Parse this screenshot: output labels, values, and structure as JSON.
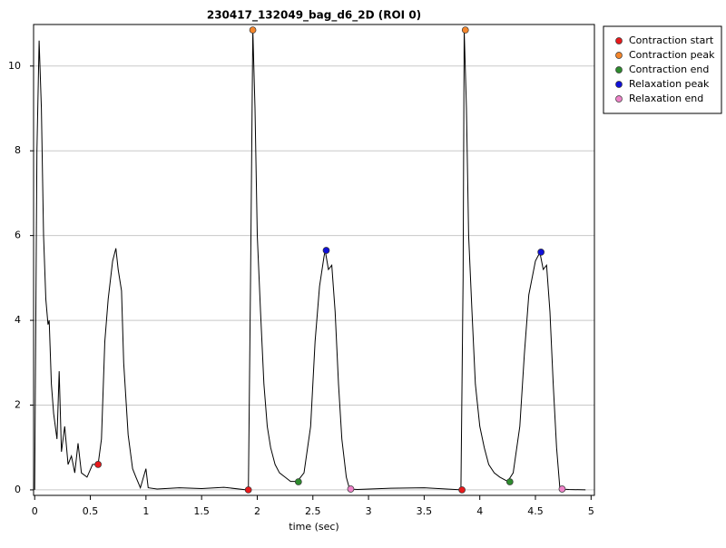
{
  "chart_data": {
    "type": "line",
    "title": "230417_132049_bag_d6_2D (ROI 0)",
    "x_label": "time (sec)",
    "xlim": [
      -0.01,
      5.03
    ],
    "ylim": [
      -0.13,
      10.98
    ],
    "xticks": [
      0,
      0.5,
      1,
      1.5,
      2,
      2.5,
      3,
      3.5,
      4,
      4.5,
      5
    ],
    "yticks": [
      0,
      2,
      4,
      6,
      8,
      10
    ],
    "grid": true,
    "legend": "outside-right",
    "trace": {
      "color": "#000000",
      "x": [
        0.0,
        0.02,
        0.04,
        0.06,
        0.08,
        0.1,
        0.12,
        0.13,
        0.15,
        0.17,
        0.2,
        0.22,
        0.24,
        0.27,
        0.3,
        0.33,
        0.36,
        0.39,
        0.42,
        0.47,
        0.52,
        0.57,
        0.6,
        0.63,
        0.66,
        0.7,
        0.73,
        0.75,
        0.78,
        0.8,
        0.84,
        0.88,
        0.91,
        0.95,
        1.0,
        1.02,
        1.1,
        1.3,
        1.5,
        1.7,
        1.9,
        1.92,
        1.94,
        1.96,
        1.98,
        2.0,
        2.03,
        2.06,
        2.09,
        2.12,
        2.16,
        2.2,
        2.25,
        2.3,
        2.36,
        2.42,
        2.48,
        2.52,
        2.56,
        2.6,
        2.61,
        2.64,
        2.67,
        2.7,
        2.73,
        2.76,
        2.8,
        2.83,
        2.9,
        3.2,
        3.5,
        3.83,
        3.85,
        3.86,
        3.88,
        3.9,
        3.93,
        3.96,
        4.0,
        4.04,
        4.08,
        4.13,
        4.18,
        4.25,
        4.3,
        4.36,
        4.4,
        4.44,
        4.5,
        4.54,
        4.57,
        4.6,
        4.63,
        4.66,
        4.69,
        4.72,
        4.8,
        4.95
      ],
      "values": [
        0,
        8,
        10.6,
        9,
        6,
        4.5,
        3.9,
        4.0,
        2.5,
        1.8,
        1.2,
        2.8,
        0.9,
        1.5,
        0.6,
        0.8,
        0.4,
        1.1,
        0.4,
        0.3,
        0.6,
        0.6,
        1.2,
        3.5,
        4.5,
        5.4,
        5.7,
        5.2,
        4.7,
        3.0,
        1.3,
        0.5,
        0.3,
        0.05,
        0.5,
        0.05,
        0.02,
        0.05,
        0.03,
        0.06,
        0.0,
        0,
        5,
        10.85,
        9,
        6,
        4.2,
        2.5,
        1.5,
        1.0,
        0.6,
        0.4,
        0.3,
        0.2,
        0.2,
        0.4,
        1.5,
        3.5,
        4.8,
        5.5,
        5.65,
        5.2,
        5.3,
        4.2,
        2.5,
        1.2,
        0.3,
        0.02,
        0.01,
        0.04,
        0.05,
        0,
        5,
        10.85,
        9,
        6,
        4.2,
        2.5,
        1.5,
        1.0,
        0.6,
        0.4,
        0.3,
        0.2,
        0.4,
        1.5,
        3.2,
        4.6,
        5.4,
        5.6,
        5.2,
        5.3,
        4.2,
        2.5,
        1.0,
        0.02,
        0.01,
        0.0
      ]
    },
    "series": [
      {
        "name": "Contraction start",
        "color": "#e8191b",
        "x": [
          0.57,
          1.92,
          3.84
        ],
        "values": [
          0.6,
          0,
          0
        ]
      },
      {
        "name": "Contraction peak",
        "color": "#f4862c",
        "x": [
          1.96,
          3.87
        ],
        "values": [
          10.85,
          10.85
        ]
      },
      {
        "name": "Contraction end",
        "color": "#2e8b2e",
        "x": [
          2.37,
          4.27
        ],
        "values": [
          0.19,
          0.19
        ]
      },
      {
        "name": "Relaxation peak",
        "color": "#1010d8",
        "x": [
          2.62,
          4.55
        ],
        "values": [
          5.65,
          5.61
        ]
      },
      {
        "name": "Relaxation end",
        "color": "#ee82c8",
        "x": [
          2.84,
          4.74
        ],
        "values": [
          0.02,
          0.02
        ]
      }
    ]
  }
}
